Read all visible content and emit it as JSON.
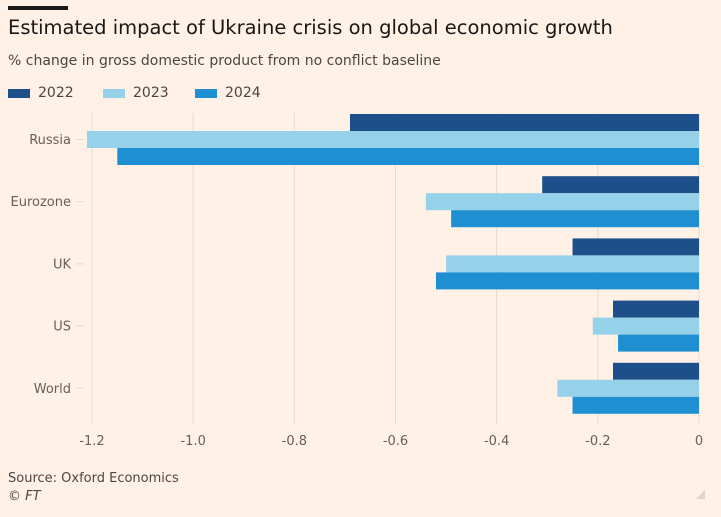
{
  "title": "Estimated impact of Ukraine crisis on global economic growth",
  "subtitle": "% change in gross domestic product from no conflict baseline",
  "source": "Source: Oxford Economics",
  "copyright": "© FT",
  "colors": {
    "background": "#fff1e5",
    "s2022": "#1d4f8b",
    "s2023": "#96d1ea",
    "s2024": "#1e8fd1",
    "grid": "#e6d9ce",
    "axis": "#66605c"
  },
  "chart_data": {
    "type": "bar",
    "orientation": "horizontal",
    "categories": [
      "Russia",
      "Eurozone",
      "UK",
      "US",
      "World"
    ],
    "series": [
      {
        "name": "2022",
        "color": "#1d4f8b",
        "values": [
          -0.69,
          -0.31,
          -0.25,
          -0.17,
          -0.17
        ]
      },
      {
        "name": "2023",
        "color": "#96d1ea",
        "values": [
          -1.21,
          -0.54,
          -0.5,
          -0.21,
          -0.28
        ]
      },
      {
        "name": "2024",
        "color": "#1e8fd1",
        "values": [
          -1.15,
          -0.49,
          -0.52,
          -0.16,
          -0.25
        ]
      }
    ],
    "xlim": [
      -1.2,
      0
    ],
    "xticks": [
      -1.2,
      -1.0,
      -0.8,
      -0.6,
      -0.4,
      -0.2,
      0
    ],
    "xtick_labels": [
      "-1.2",
      "-1.0",
      "-0.8",
      "-0.6",
      "-0.4",
      "-0.2",
      "0"
    ],
    "legend": "top-left",
    "grid": true
  }
}
